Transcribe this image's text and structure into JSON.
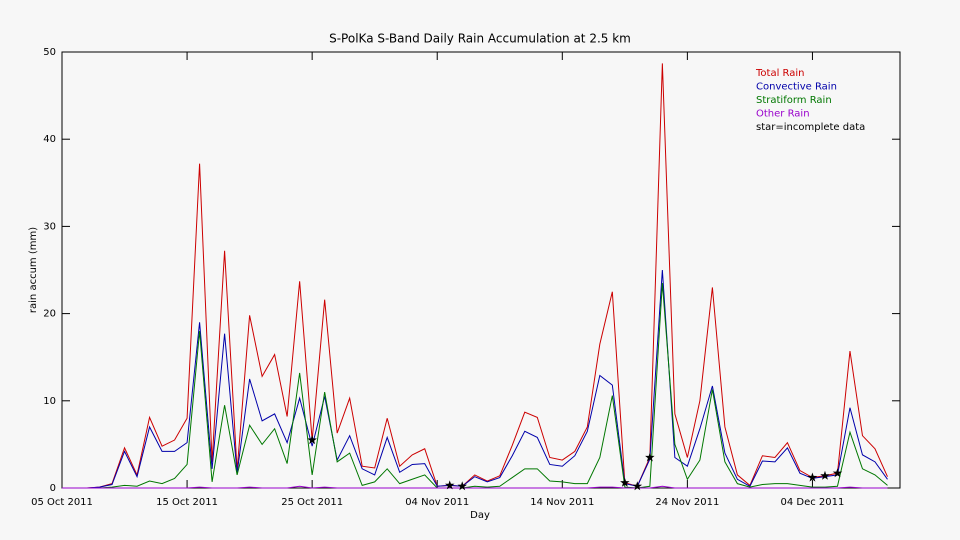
{
  "chart_data": {
    "type": "line",
    "title": "S-PolKa S-Band Daily Rain Accumulation at 2.5 km",
    "x_label": "Day",
    "y_label": "rain accum (mm)",
    "x": [
      "2011-10-05",
      "2011-10-06",
      "2011-10-07",
      "2011-10-08",
      "2011-10-09",
      "2011-10-10",
      "2011-10-11",
      "2011-10-12",
      "2011-10-13",
      "2011-10-14",
      "2011-10-15",
      "2011-10-16",
      "2011-10-17",
      "2011-10-18",
      "2011-10-19",
      "2011-10-20",
      "2011-10-21",
      "2011-10-22",
      "2011-10-23",
      "2011-10-24",
      "2011-10-25",
      "2011-10-26",
      "2011-10-27",
      "2011-10-28",
      "2011-10-29",
      "2011-10-30",
      "2011-10-31",
      "2011-11-01",
      "2011-11-02",
      "2011-11-03",
      "2011-11-04",
      "2011-11-05",
      "2011-11-06",
      "2011-11-07",
      "2011-11-08",
      "2011-11-09",
      "2011-11-10",
      "2011-11-11",
      "2011-11-12",
      "2011-11-13",
      "2011-11-14",
      "2011-11-15",
      "2011-11-16",
      "2011-11-17",
      "2011-11-18",
      "2011-11-19",
      "2011-11-20",
      "2011-11-21",
      "2011-11-22",
      "2011-11-23",
      "2011-11-24",
      "2011-11-25",
      "2011-11-26",
      "2011-11-27",
      "2011-11-28",
      "2011-11-29",
      "2011-11-30",
      "2011-12-01",
      "2011-12-02",
      "2011-12-03",
      "2011-12-04",
      "2011-12-05",
      "2011-12-06",
      "2011-12-07",
      "2011-12-08",
      "2011-12-09",
      "2011-12-10"
    ],
    "series": [
      {
        "name": "Total Rain",
        "color": "#cc0000",
        "values": [
          0,
          0,
          0,
          0.1,
          0.5,
          4.6,
          1.5,
          8.1,
          4.8,
          5.5,
          8,
          37.2,
          3,
          27.2,
          2,
          19.8,
          12.8,
          15.3,
          8.2,
          23.7,
          5.5,
          21.6,
          6.3,
          10.3,
          2.5,
          2.3,
          8,
          2.5,
          3.8,
          4.5,
          0.2,
          0.3,
          0.2,
          1.5,
          0.8,
          1.4,
          4.9,
          8.7,
          8.1,
          3.5,
          3.2,
          4.2,
          7,
          16.5,
          22.5,
          0.6,
          0.2,
          3.5,
          48.7,
          8.5,
          3.5,
          10,
          23,
          7,
          1.5,
          0.3,
          3.7,
          3.5,
          5.2,
          2,
          1.2,
          1.4,
          1.7,
          15.7,
          6,
          4.5,
          1.3
        ]
      },
      {
        "name": "Convective Rain",
        "color": "#0000aa",
        "values": [
          0,
          0,
          0,
          0.1,
          0.4,
          4.2,
          1.3,
          7,
          4.2,
          4.2,
          5.2,
          19,
          2.2,
          17.7,
          1.7,
          12.5,
          7.7,
          8.5,
          5.2,
          10.3,
          4.8,
          10.5,
          3.2,
          6,
          2.2,
          1.5,
          5.8,
          1.8,
          2.7,
          2.8,
          0.2,
          0.3,
          0.2,
          1.3,
          0.7,
          1.2,
          3.7,
          6.5,
          5.8,
          2.7,
          2.5,
          3.7,
          6.5,
          12.9,
          11.8,
          0.5,
          0.2,
          3.3,
          25,
          3.5,
          2.5,
          6.8,
          11.7,
          4,
          1,
          0.2,
          3.1,
          3,
          4.6,
          1.7,
          1.1,
          1.3,
          1.5,
          9.2,
          3.8,
          3,
          1
        ]
      },
      {
        "name": "Stratiform Rain",
        "color": "#007700",
        "values": [
          0,
          0,
          0,
          0,
          0.1,
          0.3,
          0.2,
          0.8,
          0.5,
          1.1,
          2.7,
          18,
          0.7,
          9.5,
          1.5,
          7.2,
          5,
          6.8,
          2.8,
          13.2,
          1.5,
          11,
          3,
          4,
          0.3,
          0.7,
          2.2,
          0.5,
          1,
          1.5,
          0,
          0,
          0,
          0.2,
          0.1,
          0.2,
          1.2,
          2.2,
          2.2,
          0.8,
          0.7,
          0.5,
          0.5,
          3.5,
          10.6,
          0.1,
          0,
          0.2,
          23.5,
          5,
          1,
          3.2,
          11.3,
          3,
          0.5,
          0.1,
          0.4,
          0.5,
          0.5,
          0.3,
          0.1,
          0.1,
          0.2,
          6.4,
          2.2,
          1.5,
          0.3
        ]
      },
      {
        "name": "Other Rain",
        "color": "#9900cc",
        "values": [
          0,
          0,
          0,
          0,
          0,
          0,
          0,
          0,
          0,
          0,
          0,
          0.1,
          0,
          0,
          0,
          0.1,
          0,
          0,
          0,
          0.2,
          0,
          0.1,
          0,
          0,
          0,
          0,
          0,
          0,
          0,
          0,
          0,
          0,
          0,
          0,
          0,
          0,
          0,
          0,
          0,
          0,
          0,
          0,
          0,
          0.1,
          0.1,
          0,
          0,
          0,
          0.2,
          0,
          0,
          0,
          0,
          0,
          0,
          0,
          0,
          0,
          0,
          0,
          0,
          0,
          0,
          0.1,
          0,
          0,
          0
        ]
      }
    ],
    "incomplete_indices": [
      20,
      31,
      32,
      45,
      46,
      47,
      60,
      61,
      62
    ],
    "legend_note": "star=incomplete data",
    "xlim": [
      "2011-10-05",
      "2011-12-11"
    ],
    "xticks": [
      {
        "value": "2011-10-05",
        "label": "05 Oct 2011"
      },
      {
        "value": "2011-10-15",
        "label": "15 Oct 2011"
      },
      {
        "value": "2011-10-25",
        "label": "25 Oct 2011"
      },
      {
        "value": "2011-11-04",
        "label": "04 Nov 2011"
      },
      {
        "value": "2011-11-14",
        "label": "14 Nov 2011"
      },
      {
        "value": "2011-11-24",
        "label": "24 Nov 2011"
      },
      {
        "value": "2011-12-04",
        "label": "04 Dec 2011"
      }
    ],
    "ylim": [
      0,
      50
    ],
    "yticks": [
      0,
      10,
      20,
      30,
      40,
      50
    ],
    "legend": "upper right"
  }
}
